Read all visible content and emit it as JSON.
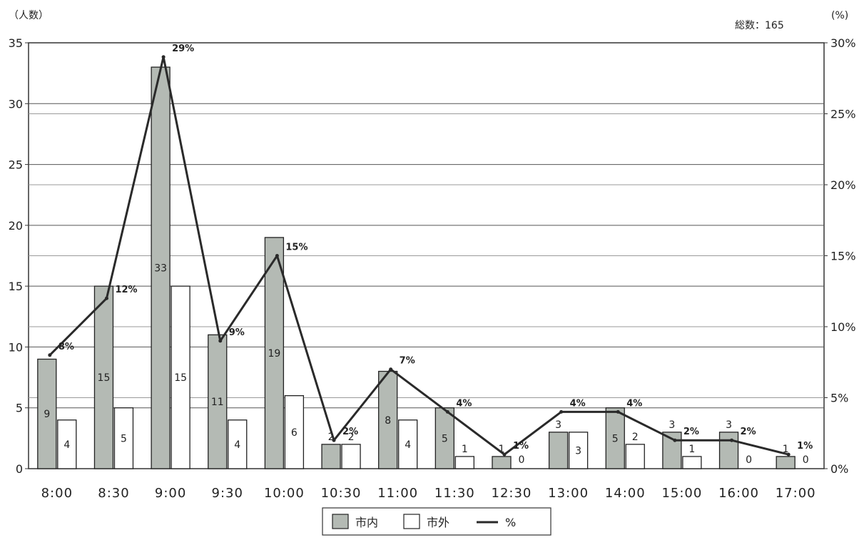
{
  "chart_data": {
    "type": "bar",
    "title": "",
    "total_label": "総数：165",
    "y_left_label": "（人数）",
    "y_right_label": "(%)",
    "categories": [
      "8:00",
      "8:30",
      "9:00",
      "9:30",
      "10:00",
      "10:30",
      "11:00",
      "11:30",
      "12:30",
      "13:00",
      "14:00",
      "15:00",
      "16:00",
      "17:00"
    ],
    "series": [
      {
        "name": "市内",
        "values": [
          9,
          15,
          33,
          11,
          19,
          2,
          8,
          5,
          1,
          3,
          5,
          3,
          3,
          1
        ],
        "color": "#b4bab4"
      },
      {
        "name": "市外",
        "values": [
          4,
          5,
          15,
          4,
          6,
          2,
          4,
          1,
          0,
          3,
          2,
          1,
          0,
          0
        ],
        "color": "#ffffff"
      }
    ],
    "line_series": {
      "name": "%",
      "values": [
        8,
        12,
        29,
        9,
        15,
        2,
        7,
        4,
        1,
        4,
        4,
        2,
        2,
        1
      ],
      "labels": [
        "8%",
        "12%",
        "29%",
        "9%",
        "15%",
        "2%",
        "7%",
        "4%",
        "1%",
        "4%",
        "4%",
        "2%",
        "2%",
        "1%"
      ],
      "color": "#2a2a2a"
    },
    "y_left": {
      "min": 0,
      "max": 35,
      "ticks": [
        0,
        5,
        10,
        15,
        20,
        25,
        30,
        35
      ]
    },
    "y_right": {
      "min": 0,
      "max": 30,
      "ticks": [
        "0%",
        "5%",
        "10%",
        "15%",
        "20%",
        "25%",
        "30%"
      ]
    },
    "grid": true,
    "legend_position": "bottom-center",
    "legend": [
      {
        "name": "市内",
        "kind": "gray-box"
      },
      {
        "name": "市外",
        "kind": "white-box"
      },
      {
        "name": "%",
        "kind": "line"
      }
    ]
  }
}
